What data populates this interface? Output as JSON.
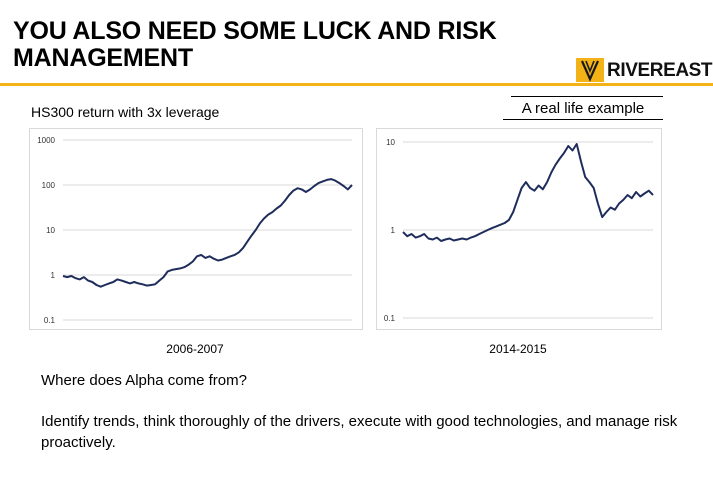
{
  "slide": {
    "title": "YOU ALSO NEED SOME LUCK AND RISK MANAGEMENT",
    "logo_text": "RIVEREAST",
    "left_subtitle": "HS300 return with 3x leverage",
    "right_subtitle": "A real life example",
    "question": "Where does Alpha come from?",
    "answer": "Identify trends, think thoroughly of the drivers, execute with good technologies, and manage risk proactively."
  },
  "colors": {
    "accent": "#f3b316",
    "line": "#1f2d5c",
    "grid": "#d9d9d9"
  },
  "chart_data": [
    {
      "type": "line",
      "xlabel": "2006-2007",
      "ylabel": "",
      "scale": "log",
      "ylim": [
        0.1,
        1000
      ],
      "yticks": [
        "1000",
        "100",
        "10",
        "1",
        "0.1"
      ],
      "grid": true,
      "series": [
        {
          "values": [
            0.95,
            0.9,
            0.95,
            0.85,
            0.8,
            0.9,
            0.75,
            0.7,
            0.6,
            0.55,
            0.6,
            0.65,
            0.7,
            0.8,
            0.75,
            0.7,
            0.65,
            0.7,
            0.65,
            0.62,
            0.58,
            0.6,
            0.62,
            0.75,
            0.9,
            1.2,
            1.3,
            1.35,
            1.4,
            1.5,
            1.7,
            2.0,
            2.6,
            2.8,
            2.4,
            2.6,
            2.3,
            2.1,
            2.2,
            2.4,
            2.6,
            2.8,
            3.2,
            4.0,
            5.5,
            7.5,
            10,
            14,
            18,
            22,
            25,
            30,
            35,
            45,
            60,
            75,
            85,
            80,
            70,
            80,
            95,
            110,
            120,
            130,
            135,
            125,
            110,
            95,
            80,
            100
          ]
        }
      ]
    },
    {
      "type": "line",
      "xlabel": "2014-2015",
      "ylabel": "",
      "scale": "log",
      "ylim": [
        0.1,
        10
      ],
      "yticks": [
        "10",
        "1",
        "0.1"
      ],
      "grid": true,
      "series": [
        {
          "values": [
            0.95,
            0.85,
            0.9,
            0.82,
            0.85,
            0.9,
            0.8,
            0.78,
            0.82,
            0.75,
            0.78,
            0.8,
            0.76,
            0.78,
            0.8,
            0.78,
            0.82,
            0.85,
            0.9,
            0.95,
            1.0,
            1.05,
            1.1,
            1.15,
            1.2,
            1.3,
            1.6,
            2.2,
            3.0,
            3.5,
            3.0,
            2.8,
            3.2,
            2.9,
            3.5,
            4.5,
            5.5,
            6.5,
            7.5,
            9.0,
            8.0,
            9.5,
            6.0,
            4.0,
            3.5,
            3.0,
            2.0,
            1.4,
            1.6,
            1.8,
            1.7,
            2.0,
            2.2,
            2.5,
            2.3,
            2.7,
            2.4,
            2.6,
            2.8,
            2.5
          ]
        }
      ]
    }
  ]
}
